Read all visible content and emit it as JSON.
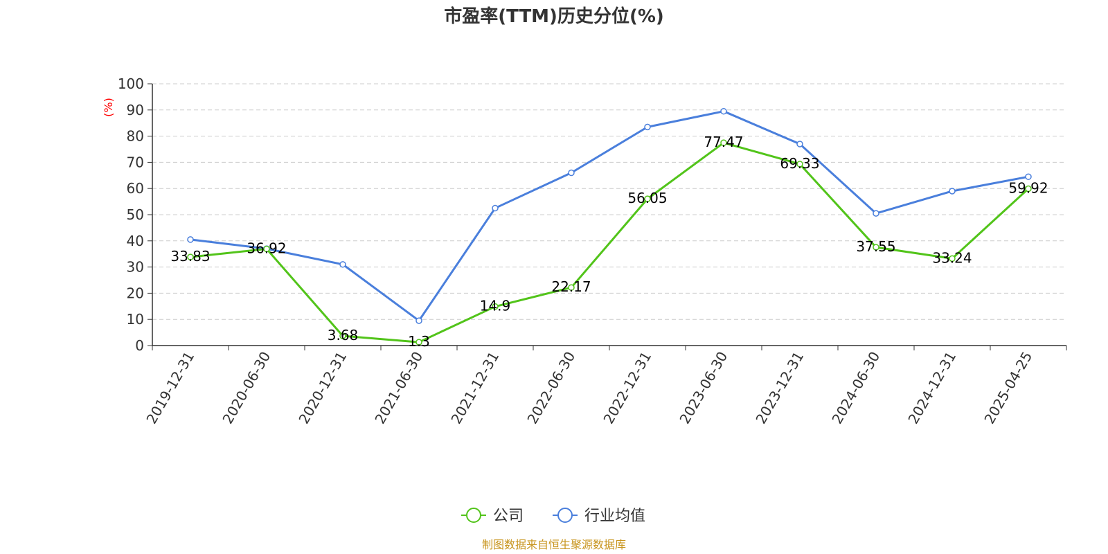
{
  "chart_data": {
    "type": "line",
    "title": "市盈率(TTM)历史分位(%)",
    "ylabel": "(%)",
    "ylim": [
      0,
      100
    ],
    "yticks": [
      0,
      10,
      20,
      30,
      40,
      50,
      60,
      70,
      80,
      90,
      100
    ],
    "categories": [
      "2019-12-31",
      "2020-06-30",
      "2020-12-31",
      "2021-06-30",
      "2021-12-31",
      "2022-06-30",
      "2022-12-31",
      "2023-06-30",
      "2023-12-31",
      "2024-06-30",
      "2024-12-31",
      "2025-04-25"
    ],
    "grid": "horizontal-dashed",
    "legend_position": "bottom",
    "series": [
      {
        "name": "公司",
        "color": "#52c41a",
        "values": [
          33.83,
          36.92,
          3.68,
          1.3,
          14.9,
          22.17,
          56.05,
          77.47,
          69.33,
          37.55,
          33.24,
          59.92
        ],
        "labels": [
          "33.83",
          "36.92",
          "3.68",
          "1.3",
          "14.9",
          "22.17",
          "56.05",
          "77.47",
          "69.33",
          "37.55",
          "33.24",
          "59.92"
        ]
      },
      {
        "name": "行业均值",
        "color": "#4a7fdc",
        "values": [
          40.5,
          37.0,
          31.0,
          9.5,
          52.5,
          66.0,
          83.5,
          89.5,
          77.0,
          50.5,
          59.0,
          64.5
        ]
      }
    ],
    "source": "制图数据来自恒生聚源数据库",
    "source_color": "#c8951f",
    "unit_color": "#ff0000"
  }
}
